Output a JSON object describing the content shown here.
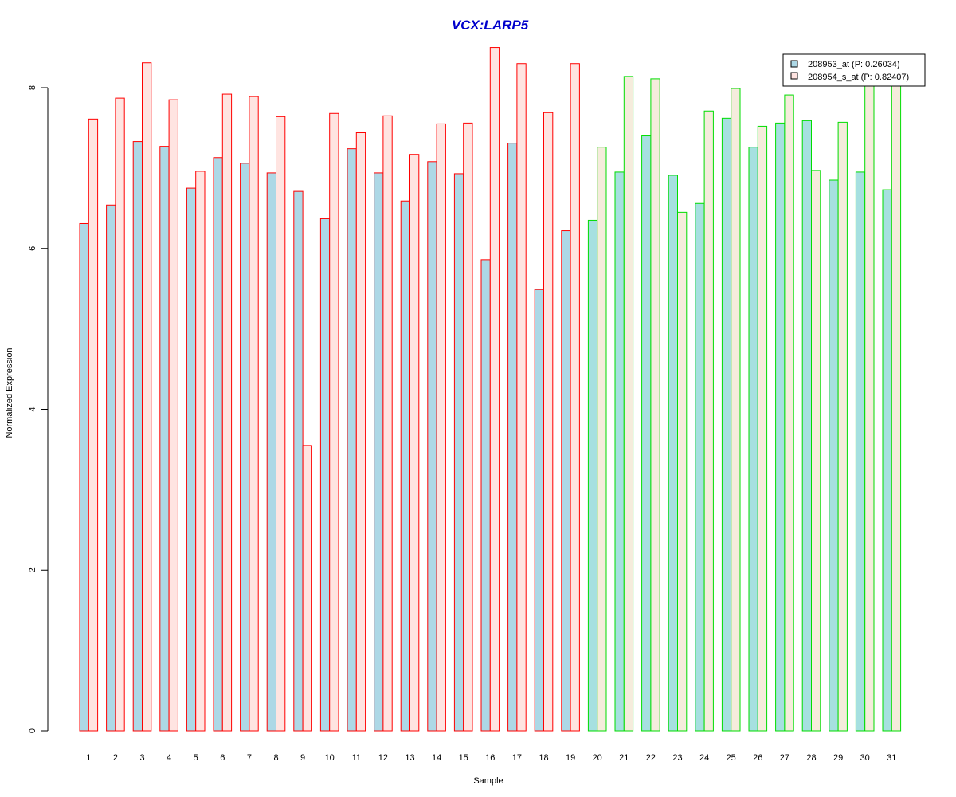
{
  "chart_data": {
    "type": "bar",
    "title": "VCX:LARP5",
    "xlabel": "Sample",
    "ylabel": "Normalized Expression",
    "ylim": [
      0,
      8.5
    ],
    "yticks": [
      0,
      2,
      4,
      6,
      8
    ],
    "grid": false,
    "legend_position": "top-right",
    "categories": [
      "1",
      "2",
      "3",
      "4",
      "5",
      "6",
      "7",
      "8",
      "9",
      "10",
      "11",
      "12",
      "13",
      "14",
      "15",
      "16",
      "17",
      "18",
      "19",
      "20",
      "21",
      "22",
      "23",
      "24",
      "25",
      "26",
      "27",
      "28",
      "29",
      "30",
      "31"
    ],
    "group_a_last_index": 19,
    "series": [
      {
        "name": "208953_at (P: 0.26034)",
        "values": [
          6.31,
          6.54,
          7.33,
          7.27,
          6.75,
          7.13,
          7.06,
          6.94,
          6.71,
          6.37,
          7.24,
          6.94,
          6.59,
          7.08,
          6.93,
          5.86,
          7.31,
          5.49,
          6.22,
          6.35,
          6.95,
          7.4,
          6.91,
          6.56,
          7.62,
          7.26,
          7.56,
          7.59,
          6.85,
          6.95,
          6.73
        ]
      },
      {
        "name": "208954_s_at (P: 0.82407)",
        "values": [
          7.61,
          7.87,
          8.31,
          7.85,
          6.96,
          7.92,
          7.89,
          7.64,
          3.55,
          7.68,
          7.44,
          7.65,
          7.17,
          7.55,
          7.56,
          8.5,
          8.3,
          7.69,
          8.3,
          7.26,
          8.14,
          8.11,
          6.45,
          7.71,
          7.99,
          7.52,
          7.91,
          6.97,
          7.57,
          8.05,
          8.05
        ]
      }
    ],
    "colors": {
      "title": "#0000cc",
      "series_a_fill": "#add8e6",
      "series_b_fill": "#ffe4e1",
      "group_a_outline": "#ff0000",
      "group_b_series_a_fill": "#a6e0e0",
      "group_b_series_b_fill": "#f5ecdc",
      "group_b_outline": "#00dd00",
      "legend_a_fill": "#add8e6",
      "legend_b_fill": "#ffe4e1"
    }
  }
}
